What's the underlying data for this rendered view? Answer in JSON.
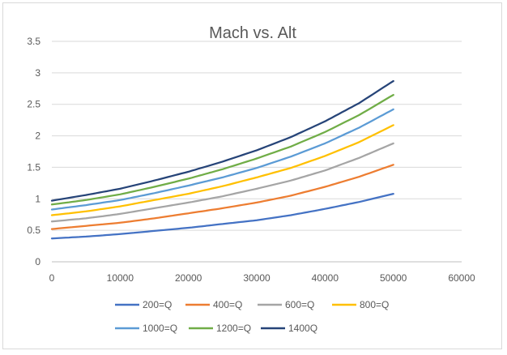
{
  "chart_data": {
    "type": "line",
    "title": "Mach vs. Alt",
    "xlabel": "",
    "ylabel": "",
    "xlim": [
      0,
      60000
    ],
    "ylim": [
      0,
      3.5
    ],
    "xticks": [
      0,
      10000,
      20000,
      30000,
      40000,
      50000,
      60000
    ],
    "yticks": [
      0,
      0.5,
      1,
      1.5,
      2,
      2.5,
      3,
      3.5
    ],
    "xtick_labels": [
      "0",
      "10000",
      "20000",
      "30000",
      "40000",
      "50000",
      "60000"
    ],
    "ytick_labels": [
      "0",
      "0.5",
      "1",
      "1.5",
      "2",
      "2.5",
      "3",
      "3.5"
    ],
    "grid": "horizontal",
    "legend_position": "bottom",
    "x": [
      0,
      5000,
      10000,
      15000,
      20000,
      25000,
      30000,
      35000,
      40000,
      45000,
      50000
    ],
    "series": [
      {
        "name": "200=Q",
        "color": "#4472C4",
        "values": [
          0.37,
          0.4,
          0.44,
          0.49,
          0.54,
          0.6,
          0.66,
          0.74,
          0.84,
          0.95,
          1.08
        ]
      },
      {
        "name": "400=Q",
        "color": "#ED7D31",
        "values": [
          0.52,
          0.57,
          0.62,
          0.69,
          0.77,
          0.85,
          0.94,
          1.05,
          1.19,
          1.35,
          1.54
        ]
      },
      {
        "name": "600=Q",
        "color": "#A5A5A5",
        "values": [
          0.64,
          0.69,
          0.76,
          0.85,
          0.94,
          1.04,
          1.16,
          1.29,
          1.45,
          1.65,
          1.88
        ]
      },
      {
        "name": "800=Q",
        "color": "#FFC000",
        "values": [
          0.74,
          0.8,
          0.88,
          0.98,
          1.08,
          1.2,
          1.34,
          1.49,
          1.68,
          1.9,
          2.17
        ]
      },
      {
        "name": "1000=Q",
        "color": "#5B9BD5",
        "values": [
          0.83,
          0.9,
          0.98,
          1.09,
          1.21,
          1.34,
          1.49,
          1.67,
          1.88,
          2.13,
          2.42
        ]
      },
      {
        "name": "1200=Q",
        "color": "#70AD47",
        "values": [
          0.91,
          0.98,
          1.07,
          1.19,
          1.32,
          1.47,
          1.64,
          1.83,
          2.06,
          2.33,
          2.65
        ]
      },
      {
        "name": "1400Q",
        "color": "#264478",
        "values": [
          0.97,
          1.06,
          1.16,
          1.29,
          1.43,
          1.59,
          1.77,
          1.98,
          2.23,
          2.52,
          2.87
        ]
      }
    ]
  }
}
